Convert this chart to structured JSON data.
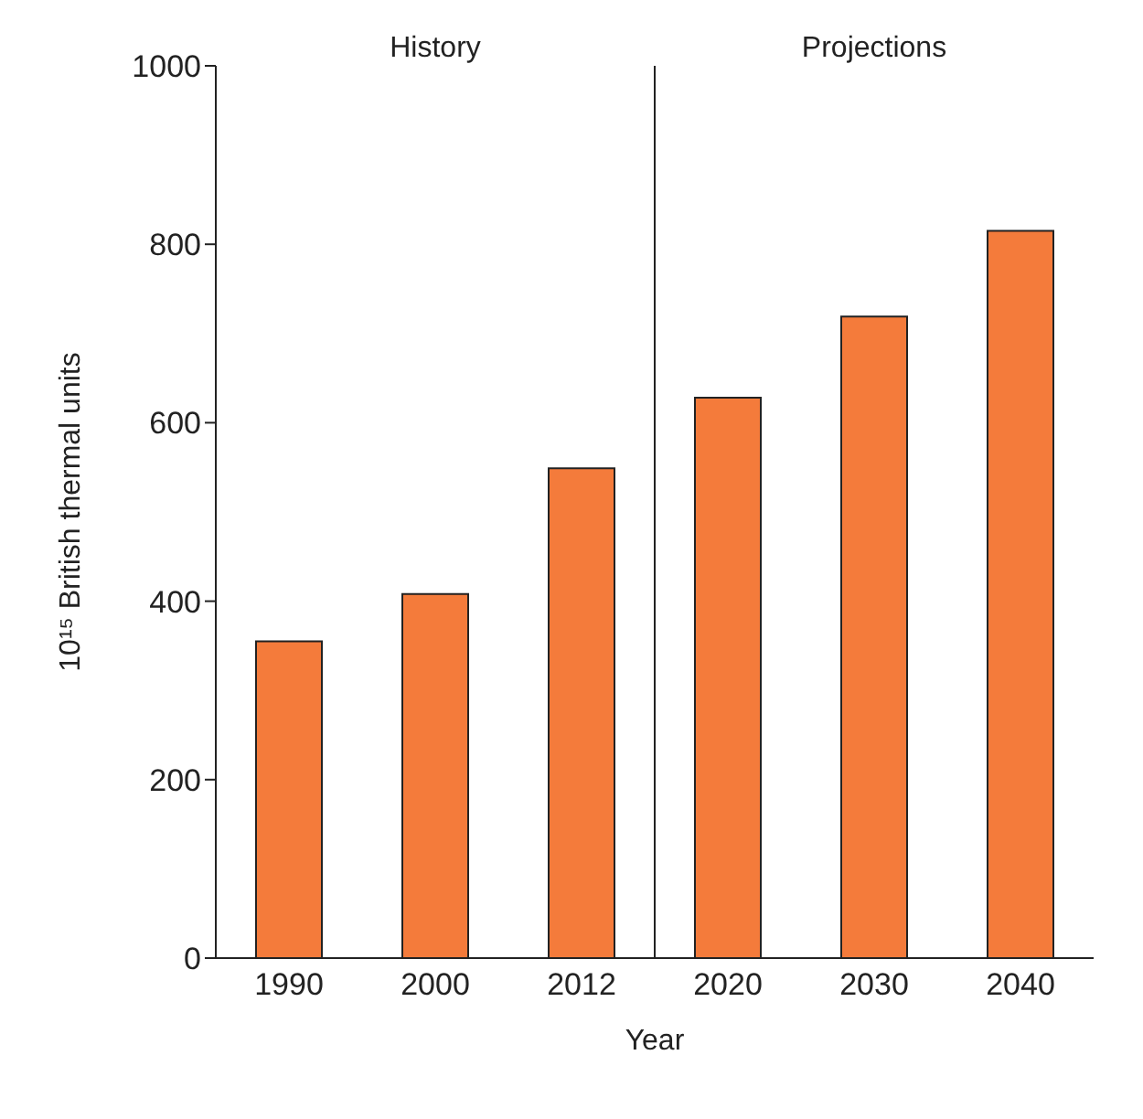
{
  "chart_data": {
    "type": "bar",
    "xlabel": "Year",
    "ylabel": "10¹⁵ British thermal units",
    "categories": [
      "1990",
      "2000",
      "2012",
      "2020",
      "2030",
      "2040"
    ],
    "values": [
      355,
      408,
      549,
      628,
      719,
      815
    ],
    "color": "#f47b3b",
    "ylim": [
      0,
      1000
    ],
    "yticks": [
      0,
      200,
      400,
      600,
      800,
      1000
    ],
    "grid": false,
    "annotations": [
      "History",
      "Projections"
    ]
  }
}
